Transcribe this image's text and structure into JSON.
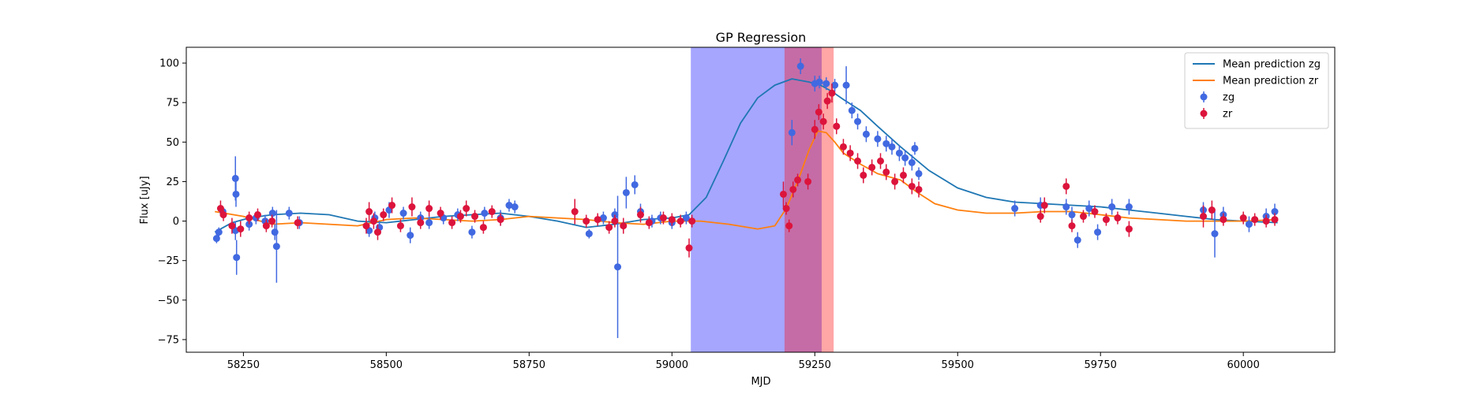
{
  "chart_data": {
    "type": "scatter",
    "title": "GP Regression",
    "xlabel": "MJD",
    "ylabel": "Flux [uJy]",
    "xlim": [
      58150,
      60160
    ],
    "ylim": [
      -83,
      110
    ],
    "x_ticks": [
      58250,
      58500,
      58750,
      59000,
      59250,
      59500,
      59750,
      60000
    ],
    "y_ticks": [
      -75,
      -50,
      -25,
      0,
      25,
      50,
      75,
      100
    ],
    "grid": false,
    "legend_position": "top-right",
    "legend": [
      {
        "label": "Mean prediction zg",
        "kind": "line",
        "color": "#1f77b4"
      },
      {
        "label": "Mean prediction zr",
        "kind": "line",
        "color": "#ff7f0e"
      },
      {
        "label": "zg",
        "kind": "marker",
        "color": "#4169e1"
      },
      {
        "label": "zr",
        "kind": "marker",
        "color": "#dc143c"
      }
    ],
    "shaded_regions": [
      {
        "x0": 59033,
        "x1": 59262,
        "color": "#0000ff",
        "opacity": 0.35
      },
      {
        "x0": 59197,
        "x1": 59283,
        "color": "#ff0000",
        "opacity": 0.35
      }
    ],
    "series": [
      {
        "name": "Mean prediction zg",
        "kind": "line",
        "color": "#1f77b4",
        "x": [
          58200,
          58230,
          58260,
          58300,
          58350,
          58400,
          58450,
          58500,
          58550,
          58600,
          58650,
          58700,
          58750,
          58800,
          58850,
          58900,
          58950,
          59000,
          59030,
          59060,
          59090,
          59120,
          59150,
          59180,
          59210,
          59240,
          59260,
          59280,
          59300,
          59330,
          59360,
          59400,
          59450,
          59500,
          59550,
          59600,
          59650,
          59700,
          59750,
          59800,
          59850,
          59900,
          59950,
          60000,
          60060
        ],
        "y": [
          -7,
          -1,
          2,
          4,
          5,
          4,
          0,
          -1,
          1,
          3,
          4,
          5,
          3,
          0,
          -4,
          -2,
          1,
          2,
          4,
          15,
          38,
          62,
          78,
          86,
          90,
          88,
          86,
          82,
          77,
          70,
          60,
          47,
          32,
          21,
          15,
          12,
          11,
          10,
          9,
          7,
          5,
          3,
          1,
          0,
          -1
        ]
      },
      {
        "name": "Mean prediction zr",
        "kind": "line",
        "color": "#ff7f0e",
        "x": [
          58200,
          58250,
          58300,
          58350,
          58400,
          58450,
          58500,
          58550,
          58600,
          58650,
          58700,
          58750,
          58800,
          58850,
          58900,
          58950,
          59000,
          59050,
          59100,
          59150,
          59180,
          59200,
          59220,
          59240,
          59255,
          59270,
          59285,
          59300,
          59330,
          59360,
          59400,
          59430,
          59460,
          59500,
          59550,
          59600,
          59650,
          59700,
          59750,
          59800,
          59850,
          59900,
          59950,
          60000,
          60060
        ],
        "y": [
          6,
          3,
          -2,
          -1,
          -2,
          -3,
          1,
          2,
          1,
          0,
          1,
          3,
          2,
          1,
          -1,
          -2,
          0,
          0,
          -2,
          -5,
          -3,
          8,
          25,
          45,
          57,
          56,
          50,
          43,
          36,
          30,
          26,
          18,
          11,
          7,
          5,
          5,
          6,
          6,
          4,
          2,
          1,
          0,
          0,
          0,
          1
        ]
      },
      {
        "name": "zg",
        "kind": "scatter",
        "color": "#4169e1",
        "points": [
          [
            58203,
            -11,
            3
          ],
          [
            58207,
            -7,
            3
          ],
          [
            58214,
            6,
            3
          ],
          [
            58236,
            27,
            14
          ],
          [
            58237,
            17,
            8
          ],
          [
            58238,
            -23,
            11
          ],
          [
            58236,
            -6,
            6
          ],
          [
            58260,
            -2,
            4
          ],
          [
            58272,
            2,
            4
          ],
          [
            58288,
            0,
            4
          ],
          [
            58301,
            5,
            4
          ],
          [
            58308,
            -16,
            23
          ],
          [
            58305,
            -7,
            5
          ],
          [
            58330,
            5,
            4
          ],
          [
            58348,
            -1,
            4
          ],
          [
            58470,
            -6,
            4
          ],
          [
            58480,
            2,
            4
          ],
          [
            58488,
            -4,
            4
          ],
          [
            58505,
            7,
            5
          ],
          [
            58530,
            5,
            4
          ],
          [
            58542,
            -9,
            5
          ],
          [
            58560,
            2,
            4
          ],
          [
            58575,
            -1,
            4
          ],
          [
            58600,
            2,
            4
          ],
          [
            58625,
            4,
            4
          ],
          [
            58650,
            -7,
            4
          ],
          [
            58672,
            5,
            4
          ],
          [
            58700,
            2,
            5
          ],
          [
            58715,
            10,
            4
          ],
          [
            58725,
            9,
            4
          ],
          [
            58855,
            -8,
            3
          ],
          [
            58880,
            2,
            4
          ],
          [
            58900,
            4,
            4
          ],
          [
            58905,
            -29,
            45
          ],
          [
            58920,
            18,
            10
          ],
          [
            58935,
            23,
            6
          ],
          [
            58945,
            6,
            5
          ],
          [
            58965,
            0,
            4
          ],
          [
            58980,
            2,
            4
          ],
          [
            59000,
            -1,
            4
          ],
          [
            59025,
            2,
            4
          ],
          [
            59210,
            56,
            8
          ],
          [
            59225,
            98,
            5
          ],
          [
            59250,
            87,
            5
          ],
          [
            59258,
            88,
            4
          ],
          [
            59270,
            87,
            4
          ],
          [
            59285,
            86,
            4
          ],
          [
            59305,
            86,
            12
          ],
          [
            59315,
            70,
            5
          ],
          [
            59325,
            63,
            5
          ],
          [
            59340,
            55,
            5
          ],
          [
            59360,
            52,
            5
          ],
          [
            59375,
            49,
            5
          ],
          [
            59385,
            47,
            5
          ],
          [
            59398,
            43,
            5
          ],
          [
            59408,
            40,
            5
          ],
          [
            59420,
            37,
            5
          ],
          [
            59425,
            46,
            4
          ],
          [
            59432,
            30,
            4
          ],
          [
            59600,
            8,
            5
          ],
          [
            59645,
            10,
            5
          ],
          [
            59690,
            9,
            5
          ],
          [
            59700,
            4,
            5
          ],
          [
            59710,
            -12,
            5
          ],
          [
            59730,
            8,
            5
          ],
          [
            59745,
            -7,
            5
          ],
          [
            59770,
            9,
            5
          ],
          [
            59800,
            9,
            5
          ],
          [
            59930,
            7,
            5
          ],
          [
            59950,
            -8,
            15
          ],
          [
            59965,
            4,
            5
          ],
          [
            60010,
            -2,
            5
          ],
          [
            60040,
            3,
            5
          ],
          [
            60055,
            6,
            5
          ]
        ]
      },
      {
        "name": "zr",
        "kind": "scatter",
        "color": "#dc143c",
        "points": [
          [
            58210,
            8,
            5
          ],
          [
            58215,
            4,
            4
          ],
          [
            58230,
            -3,
            5
          ],
          [
            58245,
            -5,
            5
          ],
          [
            58260,
            2,
            4
          ],
          [
            58275,
            4,
            4
          ],
          [
            58290,
            -3,
            4
          ],
          [
            58300,
            0,
            4
          ],
          [
            58345,
            -1,
            4
          ],
          [
            58465,
            -3,
            5
          ],
          [
            58470,
            6,
            6
          ],
          [
            58478,
            0,
            5
          ],
          [
            58485,
            -7,
            5
          ],
          [
            58495,
            4,
            4
          ],
          [
            58510,
            10,
            5
          ],
          [
            58525,
            -3,
            4
          ],
          [
            58545,
            9,
            6
          ],
          [
            58560,
            -1,
            4
          ],
          [
            58575,
            8,
            5
          ],
          [
            58595,
            5,
            4
          ],
          [
            58615,
            -1,
            4
          ],
          [
            58630,
            3,
            4
          ],
          [
            58640,
            8,
            5
          ],
          [
            58655,
            3,
            4
          ],
          [
            58670,
            -4,
            4
          ],
          [
            58685,
            6,
            4
          ],
          [
            58700,
            1,
            4
          ],
          [
            58830,
            6,
            8
          ],
          [
            58850,
            0,
            4
          ],
          [
            58870,
            1,
            4
          ],
          [
            58890,
            -4,
            4
          ],
          [
            58900,
            0,
            4
          ],
          [
            58915,
            -3,
            5
          ],
          [
            58945,
            4,
            5
          ],
          [
            58960,
            -1,
            4
          ],
          [
            58985,
            2,
            4
          ],
          [
            59000,
            1,
            4
          ],
          [
            59015,
            0,
            4
          ],
          [
            59030,
            -17,
            6
          ],
          [
            59035,
            0,
            4
          ],
          [
            59195,
            17,
            8
          ],
          [
            59200,
            8,
            4
          ],
          [
            59205,
            -3,
            4
          ],
          [
            59212,
            20,
            5
          ],
          [
            59220,
            26,
            4
          ],
          [
            59238,
            25,
            5
          ],
          [
            59250,
            58,
            6
          ],
          [
            59257,
            69,
            5
          ],
          [
            59265,
            63,
            5
          ],
          [
            59272,
            76,
            5
          ],
          [
            59280,
            81,
            6
          ],
          [
            59288,
            60,
            5
          ],
          [
            59300,
            47,
            5
          ],
          [
            59312,
            43,
            5
          ],
          [
            59325,
            38,
            5
          ],
          [
            59335,
            29,
            5
          ],
          [
            59350,
            34,
            5
          ],
          [
            59365,
            38,
            5
          ],
          [
            59375,
            31,
            5
          ],
          [
            59390,
            25,
            5
          ],
          [
            59405,
            29,
            5
          ],
          [
            59420,
            22,
            5
          ],
          [
            59432,
            20,
            5
          ],
          [
            59645,
            3,
            4
          ],
          [
            59652,
            10,
            5
          ],
          [
            59690,
            22,
            5
          ],
          [
            59700,
            -3,
            4
          ],
          [
            59720,
            3,
            4
          ],
          [
            59740,
            6,
            4
          ],
          [
            59760,
            1,
            4
          ],
          [
            59780,
            2,
            4
          ],
          [
            59800,
            -5,
            5
          ],
          [
            59930,
            3,
            7
          ],
          [
            59945,
            7,
            6
          ],
          [
            59965,
            1,
            4
          ],
          [
            60000,
            2,
            4
          ],
          [
            60020,
            1,
            4
          ],
          [
            60040,
            0,
            4
          ],
          [
            60055,
            1,
            4
          ]
        ]
      }
    ]
  }
}
